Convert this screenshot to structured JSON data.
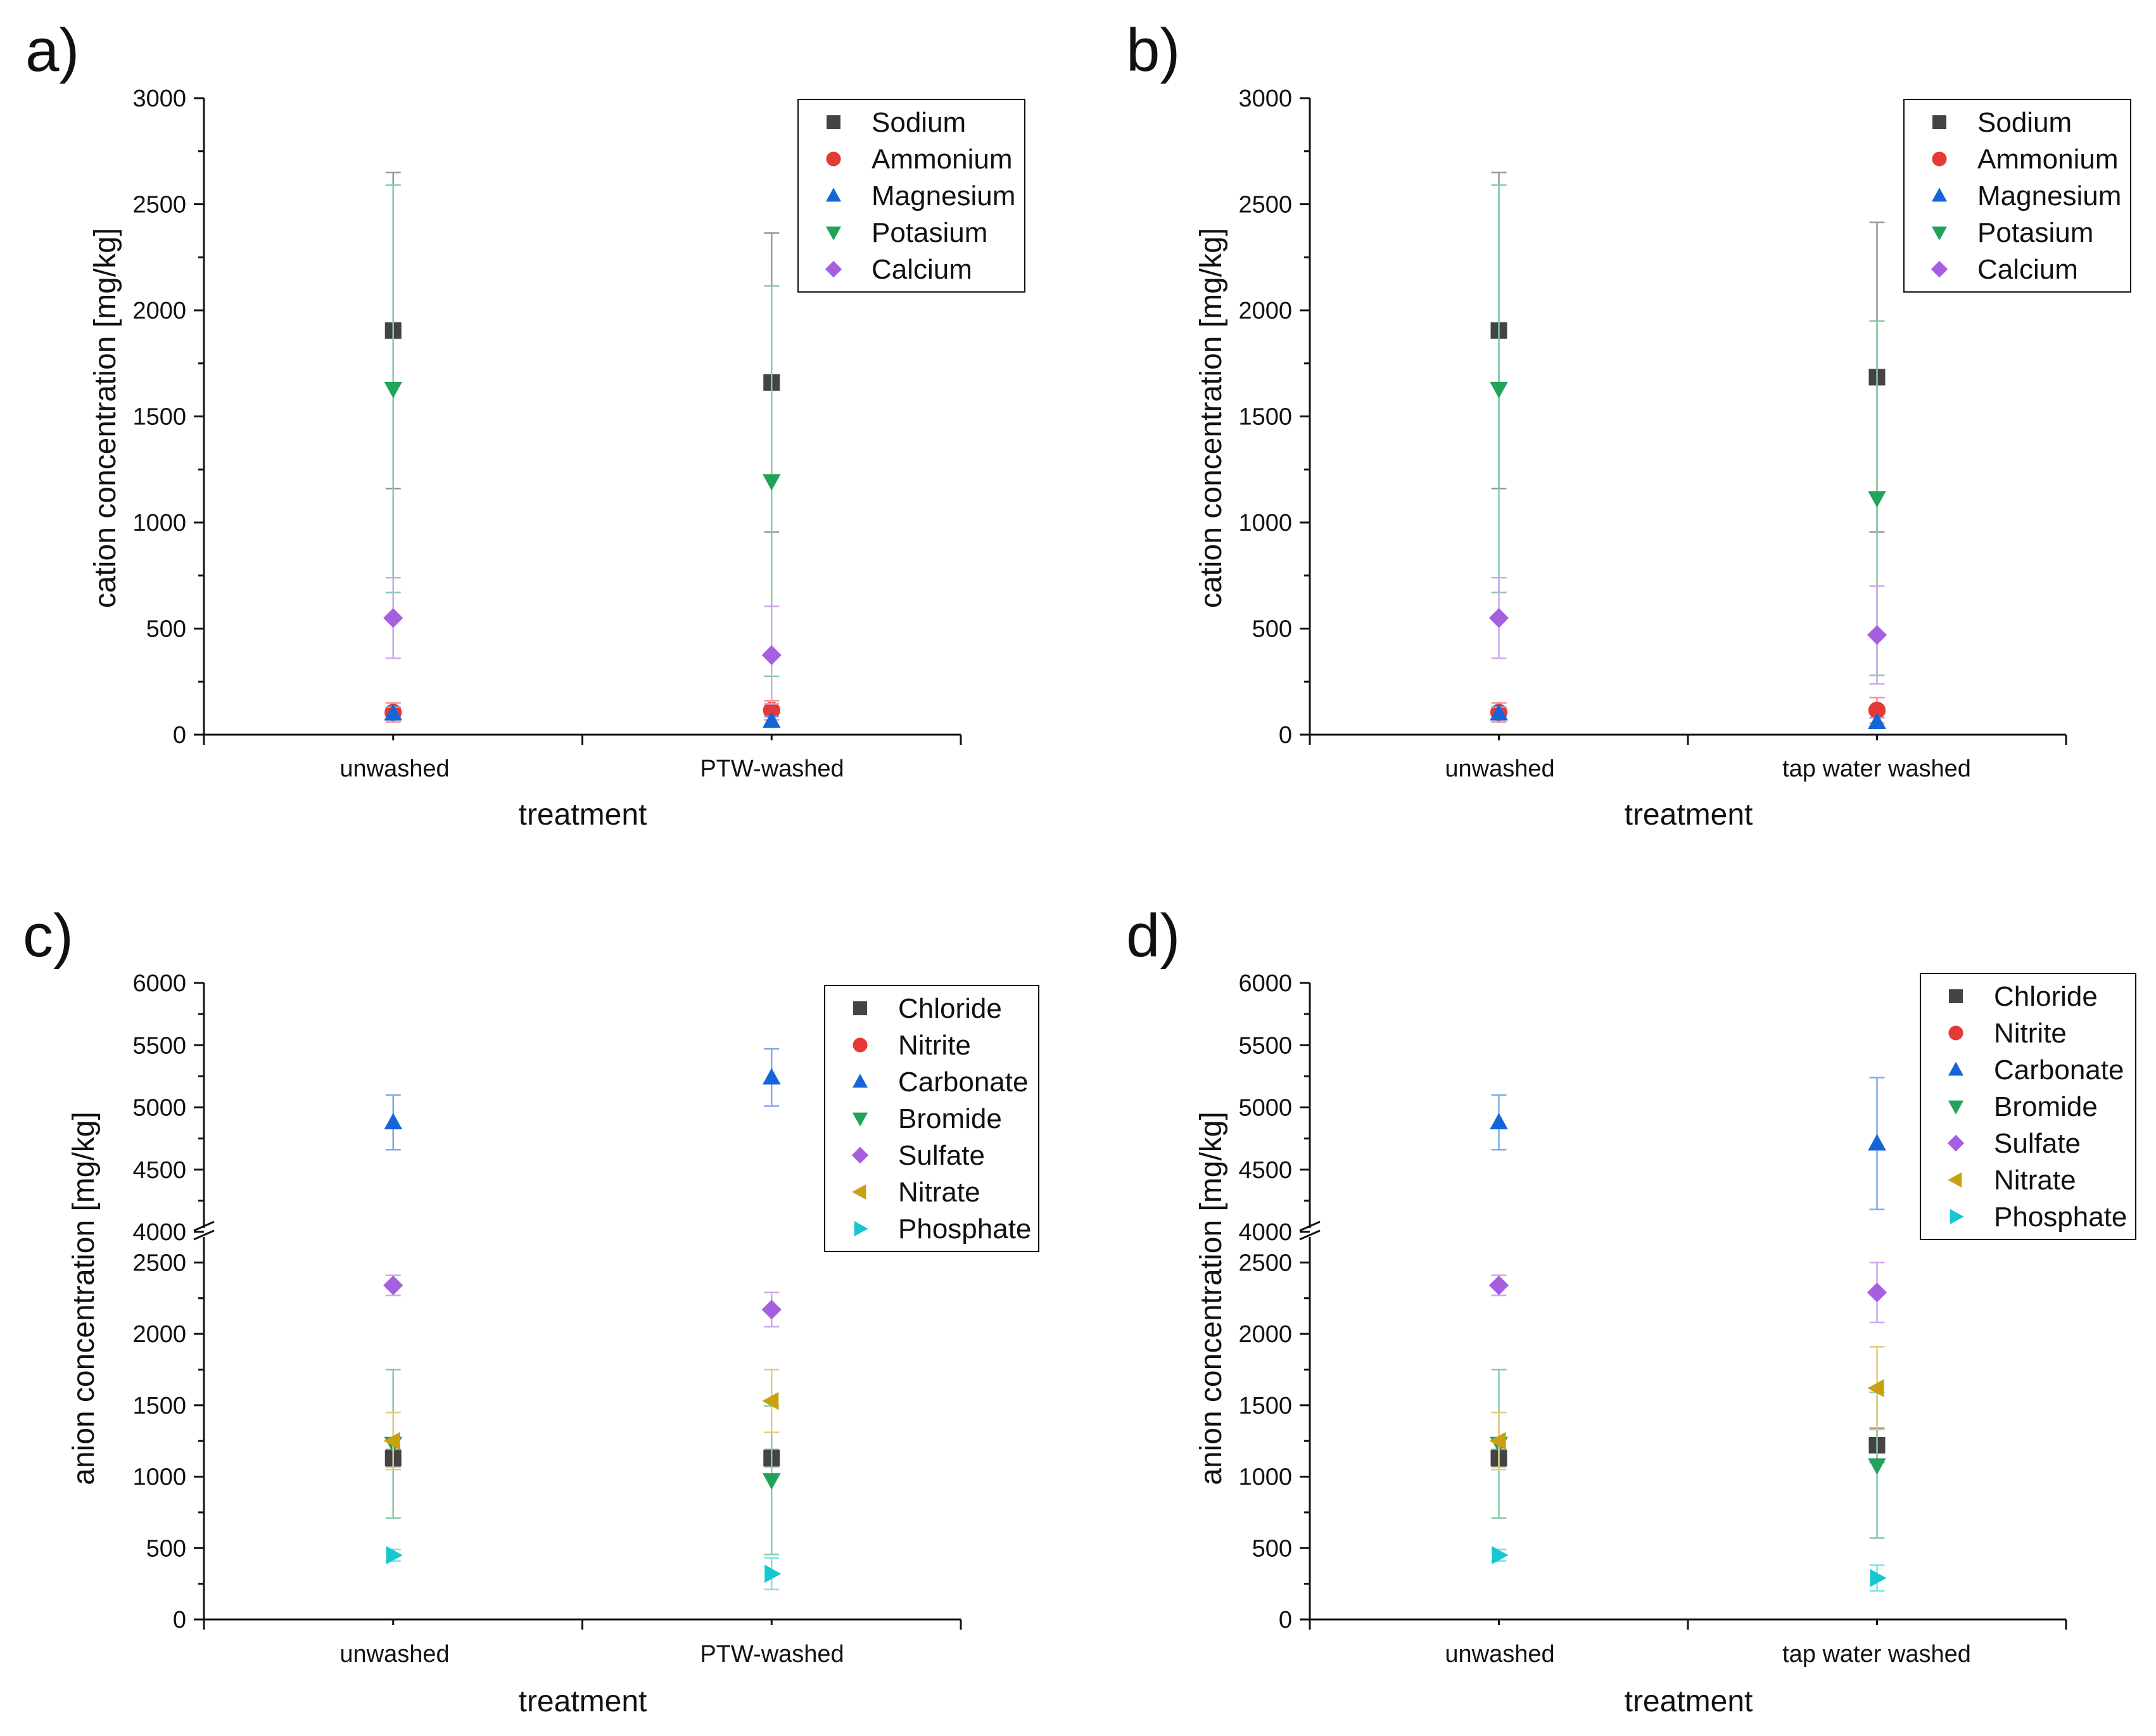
{
  "chart_data": [
    {
      "panel": "a)",
      "type": "scatter",
      "ylabel": "cation concentration [mg/kg]",
      "xlabel": "treatment",
      "categories": [
        "unwashed",
        "PTW-washed"
      ],
      "ylim": [
        0,
        3000
      ],
      "yticks": [
        "0",
        "500",
        "1000",
        "1500",
        "2000",
        "2500",
        "3000"
      ],
      "legend_position": "top-right",
      "series": [
        {
          "name": "Sodium",
          "marker": "square",
          "color": "#444444",
          "values": [
            1905,
            1660
          ],
          "err": [
            745,
            705
          ]
        },
        {
          "name": "Ammonium",
          "marker": "circle",
          "color": "#e53935",
          "values": [
            105,
            115
          ],
          "err": [
            45,
            45
          ]
        },
        {
          "name": "Magnesium",
          "marker": "triangle-up",
          "color": "#1565d8",
          "values": [
            100,
            65
          ],
          "err": [
            30,
            20
          ]
        },
        {
          "name": "Potasium",
          "marker": "triangle-down",
          "color": "#22a35a",
          "values": [
            1630,
            1195
          ],
          "err": [
            960,
            920
          ]
        },
        {
          "name": "Calcium",
          "marker": "diamond",
          "color": "#a55fe0",
          "values": [
            550,
            375
          ],
          "err": [
            190,
            230
          ]
        }
      ]
    },
    {
      "panel": "b)",
      "type": "scatter",
      "ylabel": "cation concentration [mg/kg]",
      "xlabel": "treatment",
      "categories": [
        "unwashed",
        "tap water washed"
      ],
      "ylim": [
        0,
        3000
      ],
      "yticks": [
        "0",
        "500",
        "1000",
        "1500",
        "2000",
        "2500",
        "3000"
      ],
      "legend_position": "top-right",
      "series": [
        {
          "name": "Sodium",
          "marker": "square",
          "color": "#444444",
          "values": [
            1905,
            1685
          ],
          "err": [
            745,
            730
          ]
        },
        {
          "name": "Ammonium",
          "marker": "circle",
          "color": "#e53935",
          "values": [
            105,
            115
          ],
          "err": [
            45,
            60
          ]
        },
        {
          "name": "Magnesium",
          "marker": "triangle-up",
          "color": "#1565d8",
          "values": [
            100,
            60
          ],
          "err": [
            30,
            20
          ]
        },
        {
          "name": "Potasium",
          "marker": "triangle-down",
          "color": "#22a35a",
          "values": [
            1630,
            1115
          ],
          "err": [
            960,
            835
          ]
        },
        {
          "name": "Calcium",
          "marker": "diamond",
          "color": "#a55fe0",
          "values": [
            550,
            470
          ],
          "err": [
            190,
            230
          ]
        }
      ]
    },
    {
      "panel": "c)",
      "type": "scatter",
      "ylabel": "anion concentration [mg/kg]",
      "xlabel": "treatment",
      "categories": [
        "unwashed",
        "PTW-washed"
      ],
      "ylim": [
        0,
        6000
      ],
      "axis_break": [
        2750,
        4000
      ],
      "yticks_lower": [
        "0",
        "500",
        "1000",
        "1500",
        "2000",
        "2500"
      ],
      "yticks_upper": [
        "4000",
        "4500",
        "5000",
        "5500",
        "6000"
      ],
      "legend_position": "top-right",
      "series": [
        {
          "name": "Chloride",
          "marker": "square",
          "color": "#444444",
          "values": [
            1130,
            1130
          ],
          "err": [
            60,
            60
          ]
        },
        {
          "name": "Nitrite",
          "marker": "circle",
          "color": "#e53935",
          "values": [
            null,
            null
          ],
          "err": [
            null,
            null
          ]
        },
        {
          "name": "Carbonate",
          "marker": "triangle-up",
          "color": "#1565d8",
          "values": [
            4880,
            5240
          ],
          "err": [
            220,
            230
          ]
        },
        {
          "name": "Bromide",
          "marker": "triangle-down",
          "color": "#22a35a",
          "values": [
            1230,
            975
          ],
          "err": [
            520,
            520
          ]
        },
        {
          "name": "Sulfate",
          "marker": "diamond",
          "color": "#a55fe0",
          "values": [
            2340,
            2170
          ],
          "err": [
            70,
            120
          ]
        },
        {
          "name": "Nitrate",
          "marker": "triangle-left",
          "color": "#c8a010",
          "values": [
            1250,
            1530
          ],
          "err": [
            200,
            220
          ]
        },
        {
          "name": "Phosphate",
          "marker": "triangle-right",
          "color": "#16c6d0",
          "values": [
            450,
            320
          ],
          "err": [
            40,
            110
          ]
        }
      ]
    },
    {
      "panel": "d)",
      "type": "scatter",
      "ylabel": "anion concentration [mg/kg]",
      "xlabel": "treatment",
      "categories": [
        "unwashed",
        "tap water washed"
      ],
      "ylim": [
        0,
        6000
      ],
      "axis_break": [
        2750,
        4000
      ],
      "yticks_lower": [
        "0",
        "500",
        "1000",
        "1500",
        "2000",
        "2500"
      ],
      "yticks_upper": [
        "4000",
        "4500",
        "5000",
        "5500",
        "6000"
      ],
      "legend_position": "top-right",
      "series": [
        {
          "name": "Chloride",
          "marker": "square",
          "color": "#444444",
          "values": [
            1130,
            1220
          ],
          "err": [
            60,
            120
          ]
        },
        {
          "name": "Nitrite",
          "marker": "circle",
          "color": "#e53935",
          "values": [
            null,
            null
          ],
          "err": [
            null,
            null
          ]
        },
        {
          "name": "Carbonate",
          "marker": "triangle-up",
          "color": "#1565d8",
          "values": [
            4880,
            4710
          ],
          "err": [
            220,
            530
          ]
        },
        {
          "name": "Bromide",
          "marker": "triangle-down",
          "color": "#22a35a",
          "values": [
            1230,
            1080
          ],
          "err": [
            520,
            510
          ]
        },
        {
          "name": "Sulfate",
          "marker": "diamond",
          "color": "#a55fe0",
          "values": [
            2340,
            2290
          ],
          "err": [
            70,
            210
          ]
        },
        {
          "name": "Nitrate",
          "marker": "triangle-left",
          "color": "#c8a010",
          "values": [
            1250,
            1620
          ],
          "err": [
            200,
            290
          ]
        },
        {
          "name": "Phosphate",
          "marker": "triangle-right",
          "color": "#16c6d0",
          "values": [
            450,
            290
          ],
          "err": [
            40,
            90
          ]
        }
      ]
    }
  ]
}
